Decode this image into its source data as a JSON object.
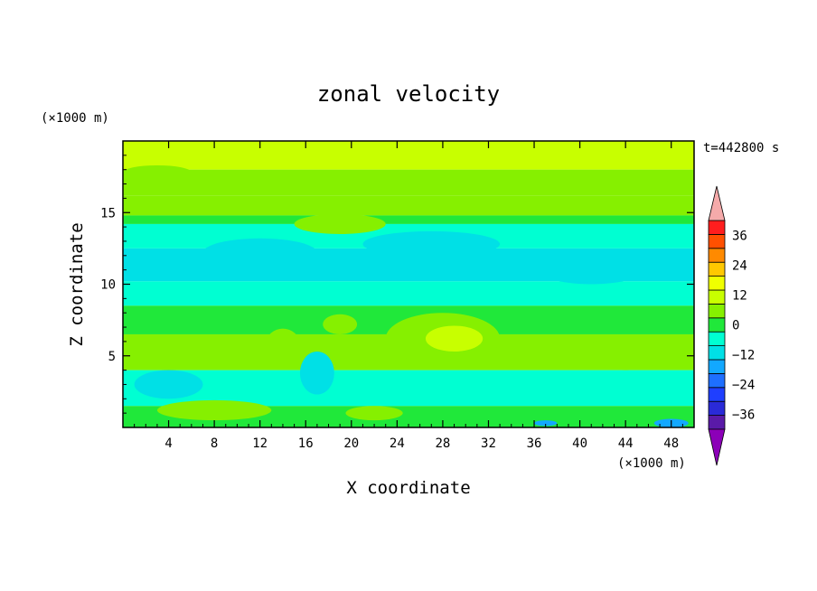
{
  "chart_data": {
    "type": "heatmap",
    "title": "zonal velocity",
    "xlabel": "X coordinate",
    "ylabel": "Z coordinate",
    "x_unit_label": "(×1000 m)",
    "y_unit_label": "(×1000 m)",
    "time_label": "t=442800 s",
    "xlim": [
      0,
      50
    ],
    "ylim": [
      0,
      20
    ],
    "x_ticks": [
      4,
      8,
      12,
      16,
      20,
      24,
      28,
      32,
      36,
      40,
      44,
      48
    ],
    "y_ticks": [
      5,
      10,
      15
    ],
    "colorbar": {
      "levels": [
        -42,
        -36,
        -30,
        -24,
        -18,
        -12,
        -6,
        0,
        6,
        12,
        18,
        24,
        30,
        36,
        42
      ],
      "labels": [
        36,
        24,
        12,
        0,
        -12,
        -24,
        -36
      ],
      "colors": [
        "#8c00b8",
        "#5a1aa8",
        "#2a2ad8",
        "#1f3fff",
        "#1e6fff",
        "#12a8ff",
        "#00e0e6",
        "#00ffd2",
        "#20e83a",
        "#86f000",
        "#c8ff00",
        "#f0ff00",
        "#ffc800",
        "#ff8a00",
        "#ff5000",
        "#ff1e1e",
        "#f5aaaa"
      ]
    },
    "bands": [
      {
        "z_bottom": 18.0,
        "z_top": 20.0,
        "u": 14
      },
      {
        "z_bottom": 16.2,
        "z_top": 18.0,
        "u": 9
      },
      {
        "z_bottom": 14.8,
        "z_top": 16.2,
        "u": 6
      },
      {
        "z_bottom": 14.2,
        "z_top": 14.8,
        "u": 1
      },
      {
        "z_bottom": 12.5,
        "z_top": 14.2,
        "u": -5
      },
      {
        "z_bottom": 10.2,
        "z_top": 12.5,
        "u": -8
      },
      {
        "z_bottom": 8.5,
        "z_top": 10.2,
        "u": -4
      },
      {
        "z_bottom": 6.5,
        "z_top": 8.5,
        "u": 2
      },
      {
        "z_bottom": 4.0,
        "z_top": 6.5,
        "u": 7
      },
      {
        "z_bottom": 1.5,
        "z_top": 4.0,
        "u": -2
      },
      {
        "z_bottom": 0.0,
        "z_top": 1.5,
        "u": 4
      }
    ],
    "features": [
      {
        "x": 3,
        "z": 17.8,
        "w": 6,
        "h": 1.0,
        "u": 9
      },
      {
        "x": 25,
        "z": 17.2,
        "w": 8,
        "h": 1.2,
        "u": 9
      },
      {
        "x": 44,
        "z": 17.4,
        "w": 8,
        "h": 1.0,
        "u": 9
      },
      {
        "x": 19,
        "z": 14.2,
        "w": 8,
        "h": 1.4,
        "u": 6
      },
      {
        "x": 12,
        "z": 12.2,
        "w": 10,
        "h": 2.0,
        "u": -12
      },
      {
        "x": 27,
        "z": 12.8,
        "w": 12,
        "h": 1.8,
        "u": -12
      },
      {
        "x": 41,
        "z": 11.2,
        "w": 10,
        "h": 2.4,
        "u": -12
      },
      {
        "x": 28,
        "z": 6.2,
        "w": 10,
        "h": 3.6,
        "u": 9
      },
      {
        "x": 29,
        "z": 6.2,
        "w": 5,
        "h": 1.8,
        "u": 14
      },
      {
        "x": 14,
        "z": 5.8,
        "w": 3,
        "h": 2.2,
        "u": 6
      },
      {
        "x": 19,
        "z": 7.2,
        "w": 3,
        "h": 1.4,
        "u": 6
      },
      {
        "x": 44,
        "z": 5.2,
        "w": 7,
        "h": 2.4,
        "u": 6
      },
      {
        "x": 4,
        "z": 3.0,
        "w": 6,
        "h": 2.0,
        "u": -8
      },
      {
        "x": 17,
        "z": 3.8,
        "w": 3,
        "h": 3.0,
        "u": -8
      },
      {
        "x": 34,
        "z": 2.8,
        "w": 10,
        "h": 1.6,
        "u": -5
      },
      {
        "x": 8,
        "z": 1.2,
        "w": 10,
        "h": 1.4,
        "u": 9
      },
      {
        "x": 22,
        "z": 1.0,
        "w": 5,
        "h": 1.0,
        "u": 6
      },
      {
        "x": 48,
        "z": 0.3,
        "w": 3,
        "h": 0.6,
        "u": -18
      },
      {
        "x": 37,
        "z": 0.3,
        "w": 2,
        "h": 0.4,
        "u": -15
      }
    ]
  }
}
